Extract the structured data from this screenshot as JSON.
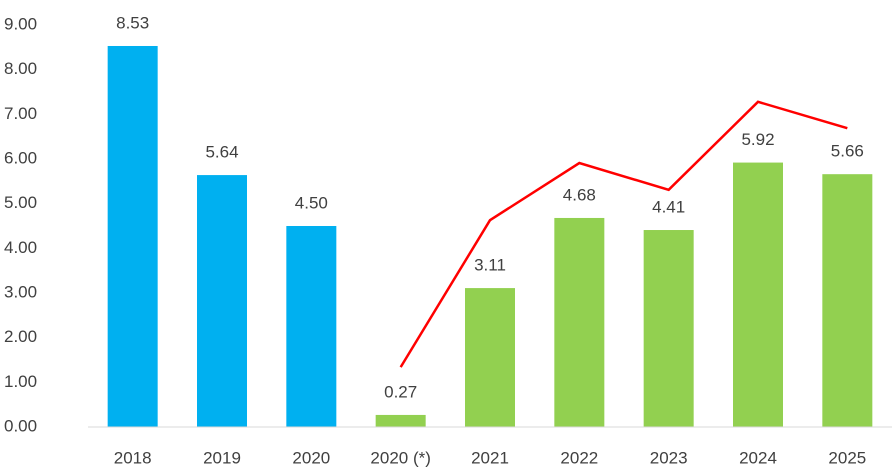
{
  "chart_data": {
    "type": "bar",
    "categories": [
      "2018",
      "2019",
      "2020",
      "2020 (*)",
      "2021",
      "2022",
      "2023",
      "2024",
      "2025"
    ],
    "values": [
      8.53,
      5.64,
      4.5,
      0.27,
      3.11,
      4.68,
      4.41,
      5.92,
      5.66
    ],
    "value_labels": [
      "8.53",
      "5.64",
      "4.50",
      "0.27",
      "3.11",
      "4.68",
      "4.41",
      "5.92",
      "5.66"
    ],
    "colors": [
      "#00b0f0",
      "#00b0f0",
      "#00b0f0",
      "#92d050",
      "#92d050",
      "#92d050",
      "#92d050",
      "#92d050",
      "#92d050"
    ],
    "line": {
      "color": "#ff0000",
      "values": [
        null,
        null,
        null,
        1.34,
        4.63,
        5.91,
        5.31,
        7.28,
        6.69
      ]
    },
    "ylim": [
      0,
      9
    ],
    "yticks": [
      {
        "value": 0,
        "label": "0.00"
      },
      {
        "value": 1,
        "label": "1.00"
      },
      {
        "value": 2,
        "label": "2.00"
      },
      {
        "value": 3,
        "label": "3.00"
      },
      {
        "value": 4,
        "label": "4.00"
      },
      {
        "value": 5,
        "label": "5.00"
      },
      {
        "value": 6,
        "label": "6.00"
      },
      {
        "value": 7,
        "label": "7.00"
      },
      {
        "value": 8,
        "label": "8.00"
      },
      {
        "value": 9,
        "label": "9.00"
      }
    ],
    "grid": false
  }
}
